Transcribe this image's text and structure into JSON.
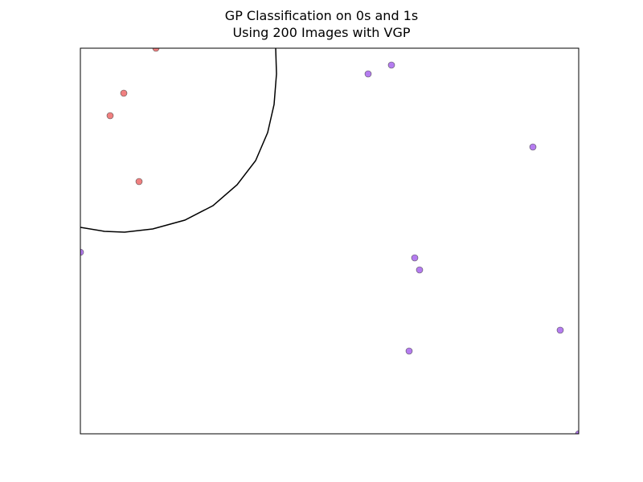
{
  "chart_data": {
    "type": "scatter",
    "title": [
      "GP Classification on 0s and 1s",
      "Using 200 Images with VGP"
    ],
    "xlabel": "",
    "ylabel": "",
    "grid": false,
    "axes_visible": false,
    "colors": {
      "class_0": "#f08080",
      "class_1": "#b57cf0",
      "edge": "#555555",
      "boundary": "#000000"
    },
    "series": [
      {
        "color": "#f08080",
        "points": [
          [
            194,
            60
          ],
          [
            154,
            116
          ],
          [
            137,
            144
          ],
          [
            173,
            226
          ]
        ]
      },
      {
        "color": "#b57cf0",
        "points": [
          [
            487,
            81
          ],
          [
            458,
            92
          ],
          [
            663,
            183
          ],
          [
            516,
            321
          ],
          [
            522,
            336
          ],
          [
            697,
            411
          ],
          [
            509,
            437
          ],
          [
            100,
            314
          ],
          [
            720,
            540
          ]
        ]
      }
    ],
    "decision_boundary": [
      [
        100,
        283
      ],
      [
        130,
        288
      ],
      [
        155,
        289
      ],
      [
        190,
        285
      ],
      [
        230,
        274
      ],
      [
        265,
        256
      ],
      [
        295,
        230
      ],
      [
        318,
        200
      ],
      [
        333,
        165
      ],
      [
        341,
        130
      ],
      [
        344,
        92
      ],
      [
        343,
        60
      ]
    ]
  }
}
